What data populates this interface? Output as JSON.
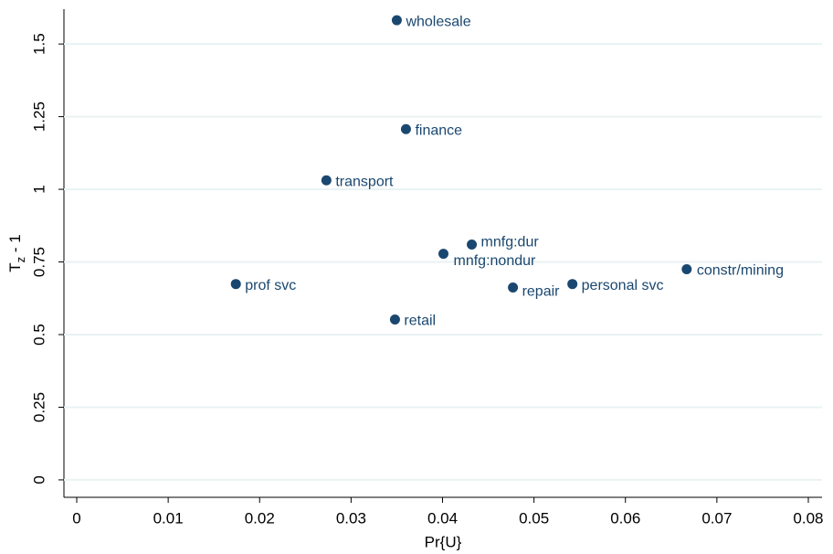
{
  "chart_data": {
    "type": "scatter",
    "x_label": "Pr{U}",
    "y_label": {
      "base": "T",
      "sub": "z",
      "rest": " - 1"
    },
    "labels": [
      "wholesale",
      "finance",
      "transport",
      "mnfg:dur",
      "mnfg:nondur",
      "constr/mining",
      "prof svc",
      "personal svc",
      "repair",
      "retail"
    ],
    "x": [
      0.035,
      0.036,
      0.0273,
      0.0432,
      0.0401,
      0.0667,
      0.0174,
      0.0542,
      0.0477,
      0.0348
    ],
    "values": [
      1.582,
      1.207,
      1.031,
      0.81,
      0.778,
      0.725,
      0.674,
      0.674,
      0.662,
      0.552
    ],
    "color": "#1a476f",
    "xlim": [
      -0.0014,
      0.0815
    ],
    "ylim": [
      -0.06,
      1.62
    ],
    "xticks": [
      0,
      0.01,
      0.02,
      0.03,
      0.04,
      0.05,
      0.06,
      0.07,
      0.08
    ],
    "yticks": [
      0,
      0.25,
      0.5,
      0.75,
      1,
      1.25,
      1.5
    ],
    "grid": true
  }
}
